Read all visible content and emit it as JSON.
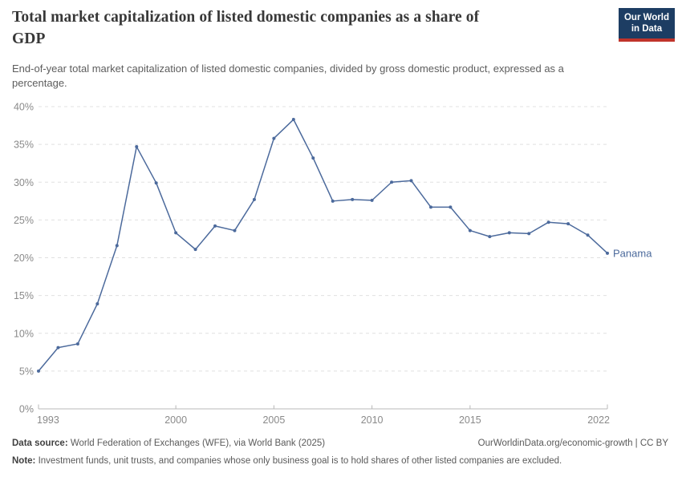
{
  "header": {
    "title": "Total market capitalization of listed domestic companies as a share of GDP",
    "title_line1": "Total market capitalization of listed domestic companies as a share of",
    "title_line2": "GDP",
    "subtitle": "End-of-year total market capitalization of listed domestic companies, divided by gross domestic product, expressed as a percentage.",
    "subtitle_line1": "End-of-year total market capitalization of listed domestic companies, divided by gross domestic product, expressed as a",
    "subtitle_line2": "percentage.",
    "logo": {
      "line1": "Our World",
      "line2": "in Data",
      "bg_color": "#1d3d63",
      "accent_color": "#c0342b"
    }
  },
  "chart_data": {
    "type": "line",
    "title": "Total market capitalization of listed domestic companies as a share of GDP",
    "xlabel": "",
    "ylabel": "",
    "x": [
      1993,
      1994,
      1995,
      1996,
      1997,
      1998,
      1999,
      2000,
      2001,
      2002,
      2003,
      2004,
      2005,
      2006,
      2007,
      2008,
      2009,
      2010,
      2011,
      2012,
      2013,
      2014,
      2015,
      2016,
      2017,
      2018,
      2019,
      2020,
      2021,
      2022
    ],
    "series": [
      {
        "name": "Panama",
        "color": "#4c6a9c",
        "values": [
          5.0,
          8.1,
          8.6,
          13.9,
          21.6,
          34.7,
          29.9,
          23.3,
          21.1,
          24.2,
          23.6,
          27.7,
          35.8,
          38.3,
          33.2,
          27.5,
          27.7,
          27.6,
          30.0,
          30.2,
          26.7,
          26.7,
          23.6,
          22.8,
          23.3,
          23.2,
          24.7,
          24.5,
          23.0,
          20.6
        ]
      }
    ],
    "end_label": "Panama",
    "xlim": [
      1993,
      2022
    ],
    "ylim": [
      0,
      40
    ],
    "x_ticks": [
      1993,
      2000,
      2005,
      2010,
      2015,
      2022
    ],
    "y_ticks": [
      0,
      5,
      10,
      15,
      20,
      25,
      30,
      35,
      40
    ],
    "y_tick_suffix": "%",
    "grid": "horizontal-dashed",
    "legend_position": "end-of-line-label",
    "colors": {
      "grid": "#e0e0e0",
      "axis": "#b8b8b8",
      "tick_label": "#8a8a8a"
    }
  },
  "footer": {
    "datasource_label": "Data source:",
    "datasource_text": " World Federation of Exchanges (WFE), via World Bank (2025)",
    "attribution": "OurWorldinData.org/economic-growth | CC BY",
    "note_label": "Note:",
    "note_text": " Investment funds, unit trusts, and companies whose only business goal is to hold shares of other listed companies are excluded."
  }
}
